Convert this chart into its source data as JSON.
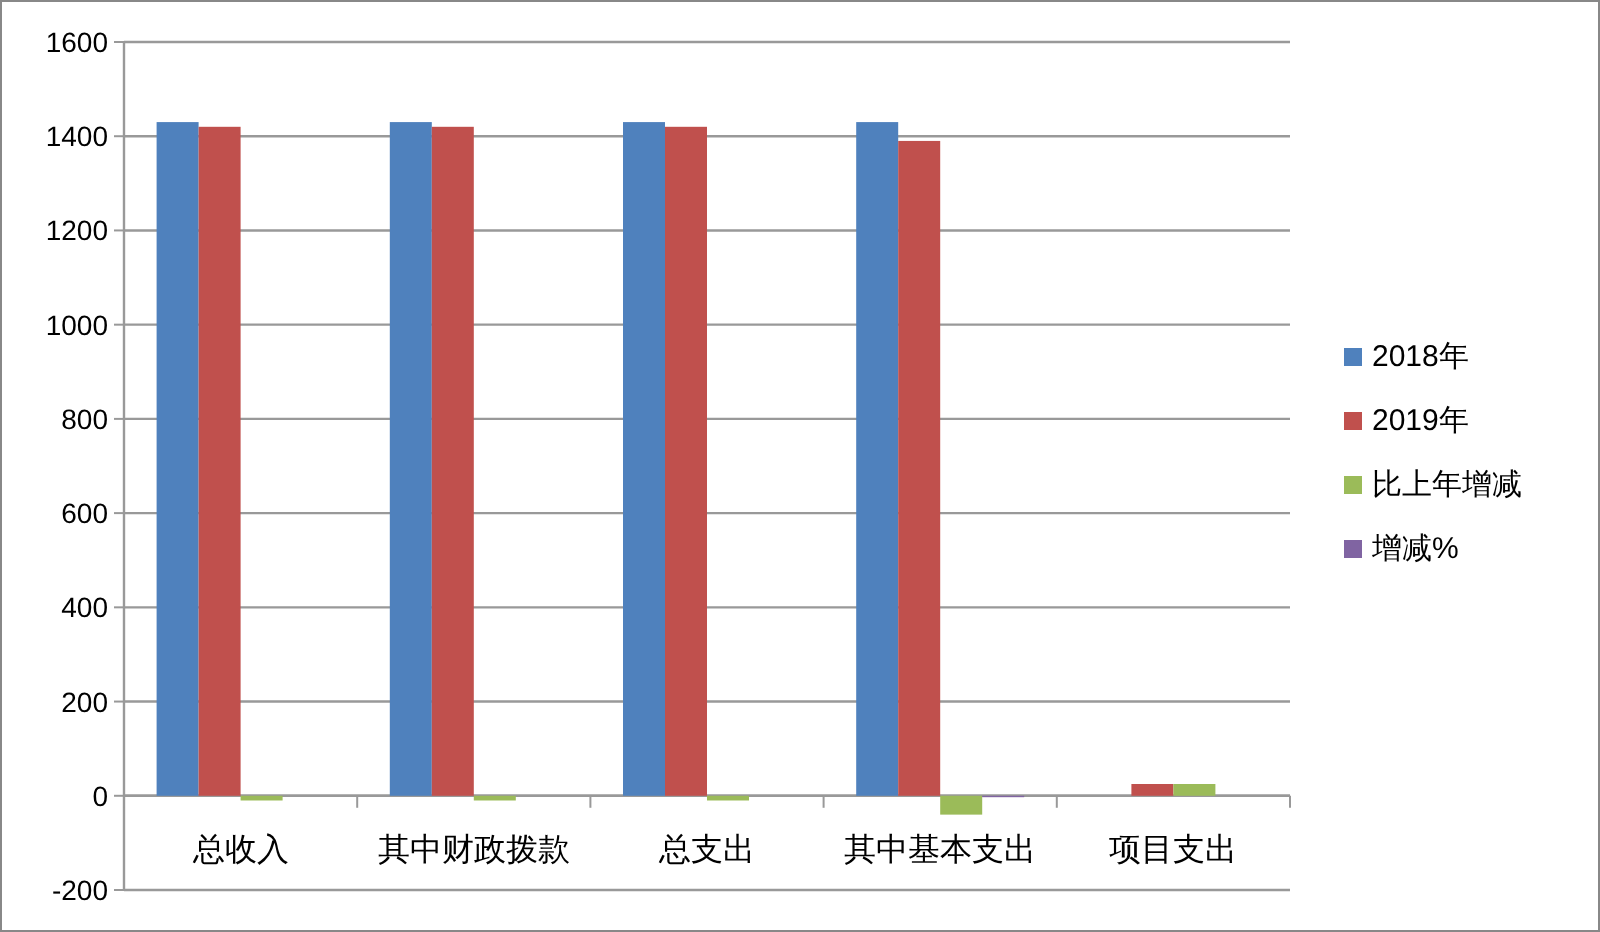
{
  "chart_data": {
    "type": "bar",
    "categories": [
      "总收入",
      "其中财政拨款",
      "总支出",
      "其中基本支出",
      "项目支出"
    ],
    "series": [
      {
        "name": "2018年",
        "color": "#4f81bd",
        "values": [
          1430,
          1430,
          1430,
          1430,
          0
        ]
      },
      {
        "name": "2019年",
        "color": "#c0504d",
        "values": [
          1420,
          1420,
          1420,
          1390,
          25
        ]
      },
      {
        "name": "比上年增减",
        "color": "#9bbb59",
        "values": [
          -10,
          -10,
          -10,
          -40,
          25
        ]
      },
      {
        "name": "增减%",
        "color": "#8064a2",
        "values": [
          null,
          null,
          null,
          -3,
          null
        ]
      }
    ],
    "ylim": [
      -200,
      1600
    ],
    "yticks": [
      -200,
      0,
      200,
      400,
      600,
      800,
      1000,
      1200,
      1400,
      1600
    ],
    "grid": "y",
    "legend": "right"
  }
}
